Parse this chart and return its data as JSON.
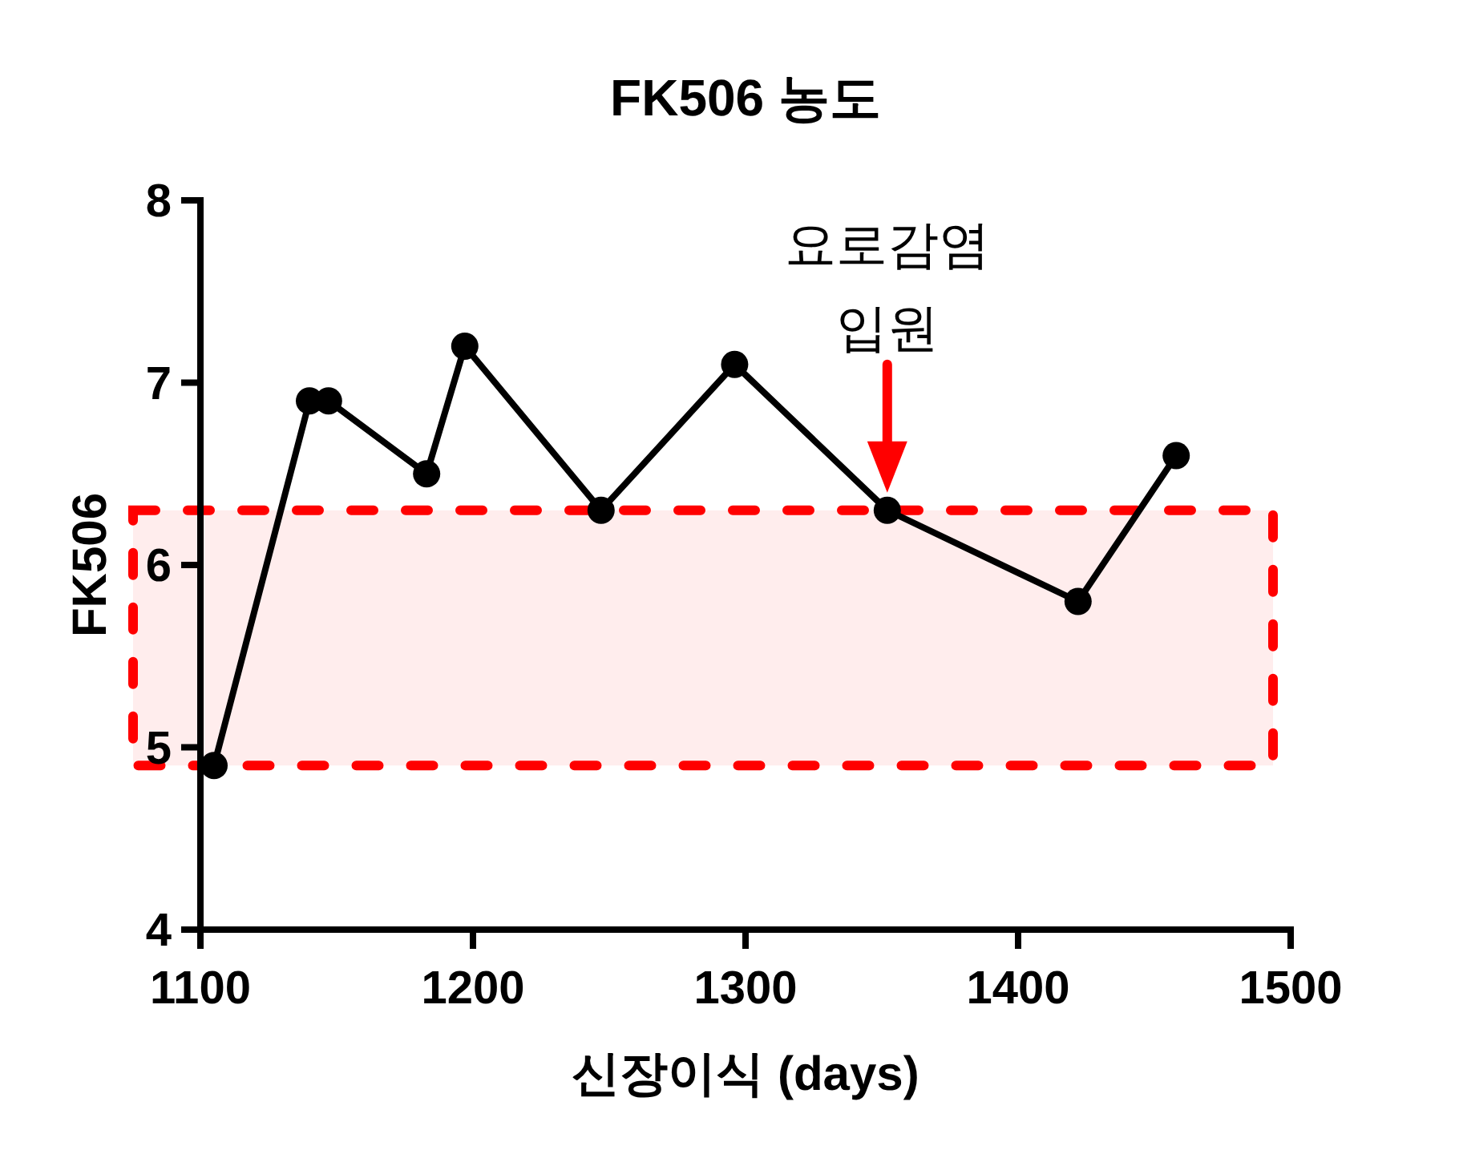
{
  "chart_data": {
    "type": "line",
    "title": "FK506 농도",
    "xlabel": "신장이식 (days)",
    "ylabel": "FK506",
    "x": [
      1105,
      1140,
      1147,
      1183,
      1197,
      1247,
      1296,
      1352,
      1422,
      1458
    ],
    "series": [
      {
        "color": "#000000",
        "values": [
          4.9,
          6.9,
          6.9,
          6.5,
          7.2,
          6.3,
          7.1,
          6.3,
          5.8,
          6.6
        ]
      }
    ],
    "xlim": [
      1100,
      1500
    ],
    "xticks": [
      1100,
      1200,
      1300,
      1400,
      1500
    ],
    "ylim": [
      4,
      8
    ],
    "yticks": [
      4,
      5,
      6,
      7,
      8
    ],
    "marker": "circle",
    "line_style": "solid",
    "bands": [
      {
        "axis": "y",
        "from": 4.9,
        "to": 6.3,
        "color": "#ff0000"
      }
    ],
    "annotations": [
      {
        "text": "요로감염\n입원",
        "x": 1352,
        "y": 6.3
      }
    ]
  }
}
